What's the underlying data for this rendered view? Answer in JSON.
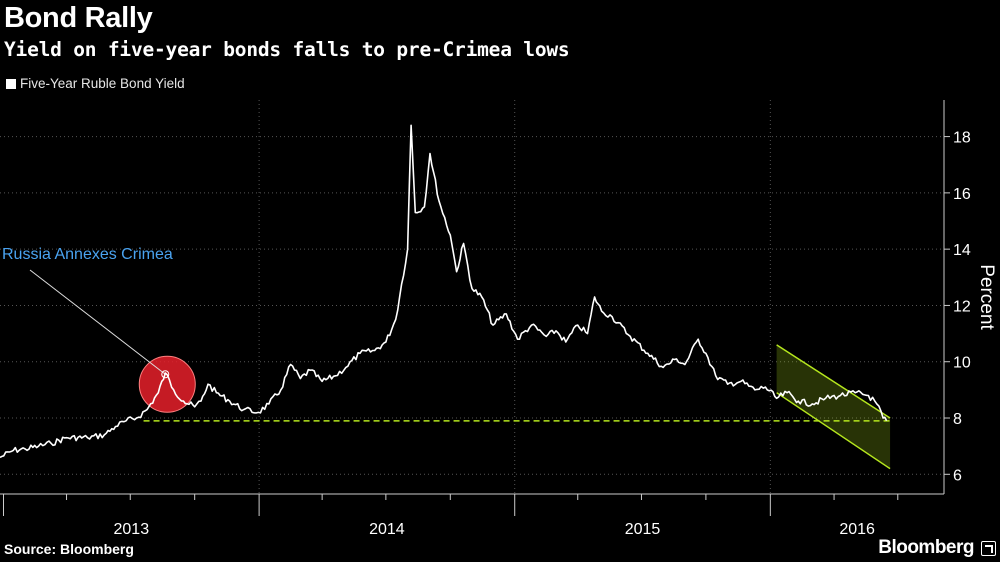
{
  "header": {
    "title": "Bond Rally",
    "subtitle": "Yield on five-year bonds falls to pre-Crimea lows",
    "legend_label": "Five-Year Ruble Bond Yield"
  },
  "footer": {
    "source": "Source: Bloomberg",
    "brand": "Bloomberg"
  },
  "colors": {
    "line": "#ffffff",
    "annotation": "#4aa3f0",
    "highlight": "#e8202a",
    "channel": "#b5e61d",
    "grid": "#555555"
  },
  "chart_data": {
    "type": "line",
    "ylabel": "Percent",
    "ylim": [
      5.3,
      19.3
    ],
    "yticks": [
      6,
      8,
      10,
      12,
      14,
      16,
      18
    ],
    "grid": true,
    "x_year_labels": [
      "2013",
      "2014",
      "2015",
      "2016"
    ],
    "series": [
      {
        "name": "Five-Year Ruble Bond Yield",
        "points": [
          [
            "2012-12-27",
            6.6
          ],
          [
            "2013-01-15",
            6.85
          ],
          [
            "2013-02-01",
            6.9
          ],
          [
            "2013-02-20",
            7.0
          ],
          [
            "2013-03-10",
            7.1
          ],
          [
            "2013-04-01",
            7.3
          ],
          [
            "2013-05-01",
            7.3
          ],
          [
            "2013-05-25",
            7.4
          ],
          [
            "2013-06-10",
            7.7
          ],
          [
            "2013-06-25",
            7.9
          ],
          [
            "2013-07-10",
            8.0
          ],
          [
            "2013-07-25",
            8.3
          ],
          [
            "2013-08-10",
            8.9
          ],
          [
            "2013-08-20",
            9.6
          ],
          [
            "2013-09-01",
            9.0
          ],
          [
            "2013-09-15",
            8.6
          ],
          [
            "2013-10-01",
            8.4
          ],
          [
            "2013-10-10",
            8.6
          ],
          [
            "2013-10-20",
            9.2
          ],
          [
            "2013-11-01",
            8.9
          ],
          [
            "2013-11-20",
            8.6
          ],
          [
            "2013-12-10",
            8.3
          ],
          [
            "2013-12-31",
            8.2
          ],
          [
            "2014-01-15",
            8.5
          ],
          [
            "2014-02-01",
            9.0
          ],
          [
            "2014-02-15",
            9.9
          ],
          [
            "2014-03-01",
            9.4
          ],
          [
            "2014-03-15",
            9.7
          ],
          [
            "2014-04-01",
            9.3
          ],
          [
            "2014-04-20",
            9.5
          ],
          [
            "2014-05-05",
            9.8
          ],
          [
            "2014-05-25",
            10.3
          ],
          [
            "2014-06-15",
            10.4
          ],
          [
            "2014-07-01",
            10.7
          ],
          [
            "2014-07-15",
            11.5
          ],
          [
            "2014-08-01",
            14.0
          ],
          [
            "2014-08-06",
            18.4
          ],
          [
            "2014-08-12",
            15.3
          ],
          [
            "2014-08-25",
            15.5
          ],
          [
            "2014-09-02",
            17.4
          ],
          [
            "2014-09-15",
            15.7
          ],
          [
            "2014-10-01",
            14.5
          ],
          [
            "2014-10-10",
            13.2
          ],
          [
            "2014-10-20",
            14.2
          ],
          [
            "2014-11-01",
            12.6
          ],
          [
            "2014-11-15",
            12.3
          ],
          [
            "2014-12-01",
            11.3
          ],
          [
            "2014-12-20",
            11.7
          ],
          [
            "2015-01-05",
            10.8
          ],
          [
            "2015-01-25",
            11.3
          ],
          [
            "2015-02-15",
            10.9
          ],
          [
            "2015-03-01",
            11.1
          ],
          [
            "2015-03-15",
            10.7
          ],
          [
            "2015-04-01",
            11.3
          ],
          [
            "2015-04-15",
            11.0
          ],
          [
            "2015-04-25",
            12.3
          ],
          [
            "2015-05-05",
            11.8
          ],
          [
            "2015-05-20",
            11.6
          ],
          [
            "2015-06-15",
            10.9
          ],
          [
            "2015-07-10",
            10.3
          ],
          [
            "2015-08-01",
            9.8
          ],
          [
            "2015-08-20",
            10.1
          ],
          [
            "2015-09-01",
            9.9
          ],
          [
            "2015-09-20",
            10.8
          ],
          [
            "2015-10-01",
            10.3
          ],
          [
            "2015-10-15",
            9.5
          ],
          [
            "2015-11-01",
            9.2
          ],
          [
            "2015-11-20",
            9.3
          ],
          [
            "2015-12-10",
            9.0
          ],
          [
            "2015-12-25",
            9.1
          ],
          [
            "2016-01-10",
            8.7
          ],
          [
            "2016-01-25",
            8.9
          ],
          [
            "2016-02-10",
            8.6
          ],
          [
            "2016-03-01",
            8.5
          ],
          [
            "2016-03-20",
            8.7
          ],
          [
            "2016-04-10",
            8.8
          ],
          [
            "2016-05-01",
            8.9
          ],
          [
            "2016-05-20",
            8.8
          ],
          [
            "2016-06-01",
            8.5
          ],
          [
            "2016-06-10",
            8.0
          ],
          [
            "2016-06-15",
            7.9
          ]
        ]
      }
    ],
    "reference_line": {
      "value": 7.9,
      "from": "2013-07-20",
      "to": "2016-06-20",
      "style": "dashed"
    },
    "channel": {
      "upper": [
        [
          "2016-01-10",
          10.6
        ],
        [
          "2016-06-20",
          8.0
        ]
      ],
      "lower": [
        [
          "2016-01-10",
          8.9
        ],
        [
          "2016-06-20",
          6.2
        ]
      ]
    },
    "annotations": [
      {
        "text": "Russia Annexes Crimea",
        "x": "2013-08-20",
        "y": 9.2
      }
    ]
  }
}
